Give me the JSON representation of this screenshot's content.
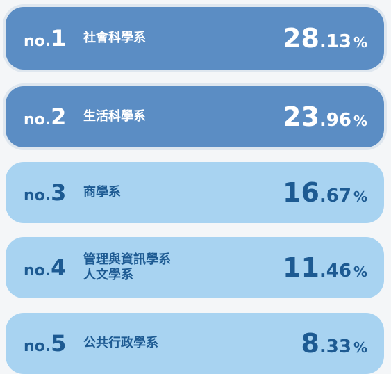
{
  "rankings": [
    {
      "rank": "no.1",
      "departments": [
        "社會科學系"
      ],
      "value": "28.13%"
    },
    {
      "rank": "no.2",
      "departments": [
        "生活科學系"
      ],
      "value": "23.96%"
    },
    {
      "rank": "no.3",
      "departments": [
        "商學系"
      ],
      "value": "16.67%"
    },
    {
      "rank": "no.4",
      "departments": [
        "管理與資訊學系",
        "人文學系"
      ],
      "value": "11.46%"
    },
    {
      "rank": "no.5",
      "departments": [
        "公共行政學系"
      ],
      "value": "8.33%"
    }
  ]
}
